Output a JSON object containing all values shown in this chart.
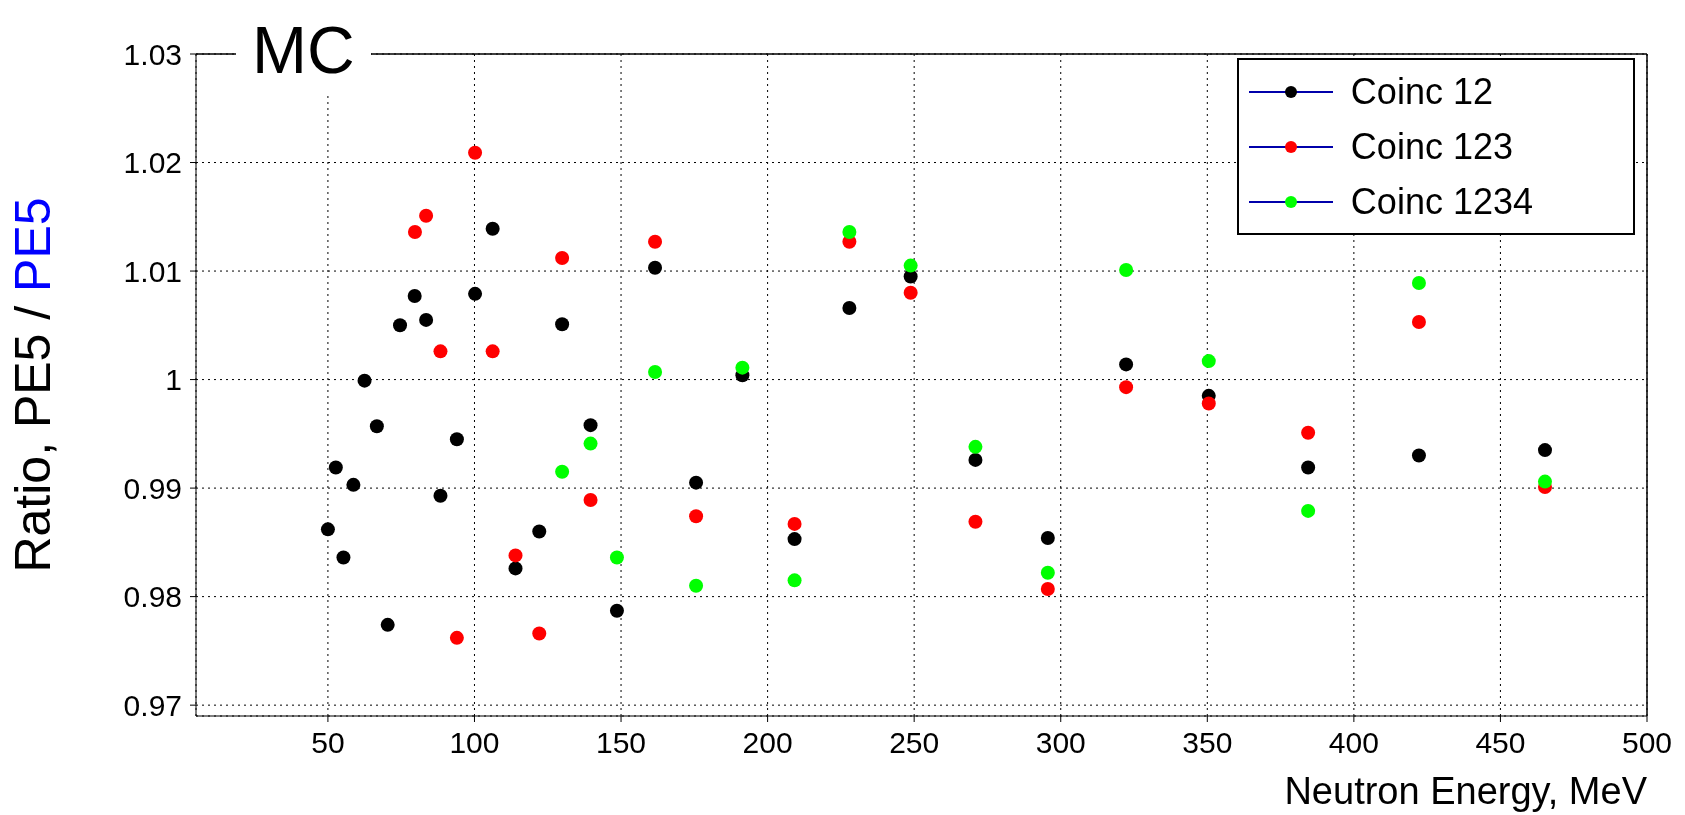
{
  "chart_data": {
    "type": "scatter",
    "title": "MC",
    "xlabel": "Neutron Energy, MeV",
    "ylabel": "Ratio, PE5 / PE5",
    "xlim": [
      5,
      500
    ],
    "xticks": [
      50,
      100,
      150,
      200,
      250,
      300,
      350,
      400,
      450,
      500
    ],
    "ylim": [
      0.969,
      1.03
    ],
    "yticks": [
      0.97,
      0.98,
      0.99,
      1,
      1.01,
      1.02,
      1.03
    ],
    "grid": true,
    "legend": "top right",
    "marker": "circle",
    "series": [
      {
        "name": "Coinc 12",
        "color": "#000000",
        "x": [
          50,
          52.7,
          55.3,
          58.7,
          62.5,
          66.7,
          70.4,
          74.6,
          79.6,
          83.5,
          88.4,
          94.0,
          100.2,
          106.2,
          114.0,
          122.1,
          129.9,
          139.6,
          148.6,
          161.6,
          175.6,
          191.4,
          209.2,
          227.9,
          248.8,
          270.9,
          295.6,
          322.3,
          350.5,
          384.4,
          422.2,
          465.2
        ],
        "values": [
          0.9862,
          0.9919,
          0.9836,
          0.9903,
          0.9999,
          0.9957,
          0.9774,
          1.005,
          1.0077,
          1.0055,
          0.9893,
          0.9945,
          1.0079,
          1.0139,
          0.9826,
          0.986,
          1.0051,
          0.9958,
          0.9787,
          1.0103,
          0.9905,
          1.0004,
          0.9853,
          1.0066,
          1.0095,
          0.9926,
          0.9854,
          1.0014,
          0.9985,
          0.9919,
          0.993,
          0.9935
        ]
      },
      {
        "name": "Coinc 123",
        "color": "#ff0000",
        "x": [
          79.7,
          83.5,
          88.4,
          94.0,
          100.2,
          106.2,
          114.0,
          122.1,
          129.9,
          139.6,
          148.6,
          161.6,
          175.6,
          191.4,
          209.2,
          227.9,
          248.8,
          270.9,
          295.6,
          322.3,
          350.5,
          384.4,
          422.2,
          465.2
        ],
        "values": [
          1.0136,
          1.0151,
          1.0026,
          0.9762,
          1.0209,
          1.0026,
          0.9838,
          0.9766,
          1.0112,
          0.9889,
          null,
          1.0127,
          0.9874,
          null,
          0.9867,
          1.0127,
          1.008,
          0.9869,
          0.9807,
          0.9993,
          0.9978,
          0.9951,
          1.0053,
          0.9901
        ]
      },
      {
        "name": "Coinc 1234",
        "color": "#00ff00",
        "x": [
          129.9,
          139.6,
          148.6,
          161.6,
          175.6,
          191.4,
          209.2,
          227.9,
          248.8,
          270.9,
          295.6,
          322.3,
          350.5,
          384.4,
          422.2,
          465.2
        ],
        "values": [
          0.9915,
          0.9941,
          0.9836,
          1.0007,
          0.981,
          1.0011,
          0.9815,
          1.0136,
          1.0105,
          0.9938,
          0.9822,
          1.0101,
          1.0017,
          0.9879,
          1.0089,
          0.9906
        ]
      }
    ]
  }
}
